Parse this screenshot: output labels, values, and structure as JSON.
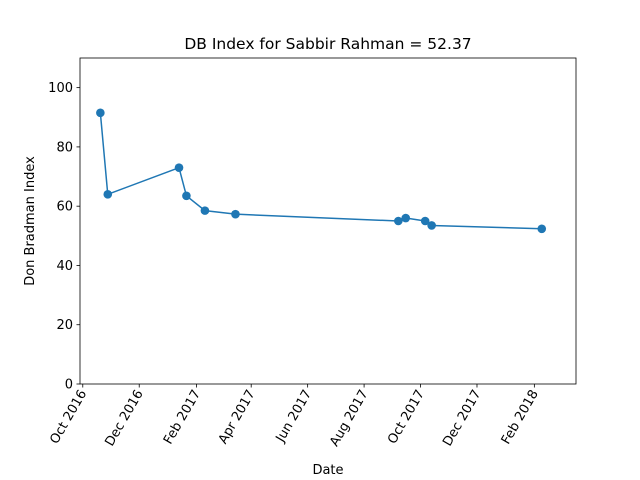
{
  "chart_data": {
    "type": "line",
    "title": "DB Index for Sabbir Rahman = 52.37",
    "xlabel": "Date",
    "ylabel": "Don Bradman Index",
    "ylim": [
      0,
      110
    ],
    "xlim": [
      "2016-09-28",
      "2018-03-18"
    ],
    "yticks": [
      0,
      20,
      40,
      60,
      80,
      100
    ],
    "xticks": [
      {
        "date": "2016-10-01",
        "label": "Oct 2016"
      },
      {
        "date": "2016-12-01",
        "label": "Dec 2016"
      },
      {
        "date": "2017-02-01",
        "label": "Feb 2017"
      },
      {
        "date": "2017-04-01",
        "label": "Apr 2017"
      },
      {
        "date": "2017-06-01",
        "label": "Jun 2017"
      },
      {
        "date": "2017-08-01",
        "label": "Aug 2017"
      },
      {
        "date": "2017-10-01",
        "label": "Oct 2017"
      },
      {
        "date": "2017-12-01",
        "label": "Dec 2017"
      },
      {
        "date": "2018-02-01",
        "label": "Feb 2018"
      }
    ],
    "grid": false,
    "color": "#1f77b4",
    "marker": "circle",
    "series": [
      {
        "x": [
          "2016-10-20",
          "2016-10-28",
          "2017-01-13",
          "2017-01-21",
          "2017-02-10",
          "2017-03-15",
          "2017-09-07",
          "2017-09-15",
          "2017-10-06",
          "2017-10-13",
          "2018-02-09"
        ],
        "y": [
          91.5,
          64.0,
          73.0,
          63.5,
          58.5,
          57.3,
          55.0,
          56.0,
          55.0,
          53.5,
          52.37
        ]
      }
    ]
  }
}
